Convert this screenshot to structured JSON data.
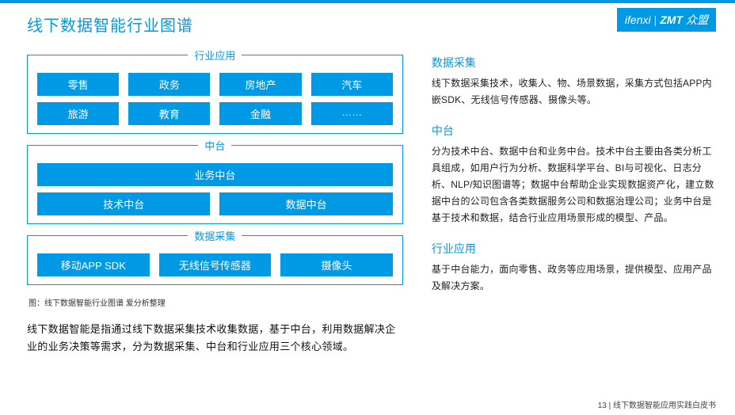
{
  "colors": {
    "primary": "#0099e5",
    "background": "#ffffff",
    "text": "#222222"
  },
  "title": "线下数据智能行业图谱",
  "logos": {
    "ifenxi": "ifenxi",
    "sep": "|",
    "zmt": "ZMT",
    "brand": "众盟"
  },
  "diagram": {
    "industry": {
      "label": "行业应用",
      "row1": [
        "零售",
        "政务",
        "房地产",
        "汽车"
      ],
      "row2": [
        "旅游",
        "教育",
        "金融",
        "……"
      ]
    },
    "middle": {
      "label": "中台",
      "full": "业务中台",
      "row2": [
        "技术中台",
        "数据中台"
      ]
    },
    "collect": {
      "label": "数据采集",
      "items": [
        "移动APP SDK",
        "无线信号传感器",
        "摄像头"
      ]
    }
  },
  "caption": "图：线下数据智能行业图谱  爱分析整理",
  "summary": "线下数据智能是指通过线下数据采集技术收集数据，基于中台，利用数据解决企业的业务决策等需求，分为数据采集、中台和行业应用三个核心领域。",
  "right": {
    "s1": {
      "title": "数据采集",
      "body": "线下数据采集技术，收集人、物、场景数据，采集方式包括APP内嵌SDK、无线信号传感器、摄像头等。"
    },
    "s2": {
      "title": "中台",
      "body": "分为技术中台、数据中台和业务中台。技术中台主要由各类分析工具组成，如用户行为分析、数据科学平台、BI与可视化、日志分析、NLP/知识图谱等；数据中台帮助企业实现数据资产化，建立数据中台的公司包含各类数据服务公司和数据治理公司；业务中台是基于技术和数据，结合行业应用场景形成的模型、产品。"
    },
    "s3": {
      "title": "行业应用",
      "body": "基于中台能力，面向零售、政务等应用场景，提供模型、应用产品及解决方案。"
    }
  },
  "footer": {
    "page": "13",
    "sep": " | ",
    "doc": "线下数据智能应用实践白皮书"
  }
}
